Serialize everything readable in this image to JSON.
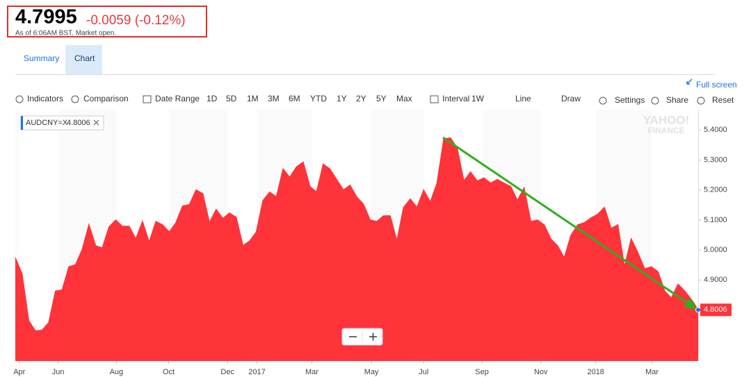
{
  "header": {
    "price": "4.7995",
    "change": "-0.0059 (-0.12%)",
    "timestamp": "As of 6:06AM BST. Market open."
  },
  "tabs": [
    "Summary",
    "Chart"
  ],
  "toolbar": {
    "left": [
      "Indicators",
      "Comparison",
      "Date Range",
      "1D",
      "5D",
      "1M",
      "3M",
      "6M",
      "YTD",
      "1Y",
      "2Y",
      "5Y",
      "Max",
      "Interval",
      "1W",
      "Line",
      "Draw"
    ],
    "right": [
      "Settings",
      "Share",
      "Reset"
    ],
    "full_screen": "Full screen"
  },
  "chart_data": {
    "type": "area",
    "symbol": "AUDCNY=X",
    "color": "#ff333a",
    "watermark": [
      "YAHOO!",
      "FINANCE"
    ],
    "values": [
      4.974,
      4.921,
      4.765,
      4.73,
      4.733,
      4.758,
      4.863,
      4.867,
      4.944,
      4.951,
      5.002,
      5.084,
      5.014,
      5.007,
      5.077,
      5.1,
      5.079,
      5.079,
      5.037,
      5.095,
      5.026,
      5.095,
      5.084,
      5.06,
      5.091,
      5.147,
      5.151,
      5.2,
      5.188,
      5.091,
      5.135,
      5.105,
      5.123,
      5.109,
      5.014,
      5.03,
      5.06,
      5.165,
      5.193,
      5.177,
      5.27,
      5.242,
      5.277,
      5.293,
      5.212,
      5.193,
      5.286,
      5.27,
      5.235,
      5.2,
      5.216,
      5.177,
      5.153,
      5.1,
      5.095,
      5.114,
      5.114,
      5.03,
      5.142,
      5.17,
      5.142,
      5.2,
      5.16,
      5.223,
      5.37,
      5.374,
      5.34,
      5.23,
      5.26,
      5.23,
      5.24,
      5.223,
      5.235,
      5.223,
      5.212,
      5.165,
      5.207,
      5.095,
      5.1,
      5.084,
      5.037,
      5.014,
      4.974,
      5.049,
      5.084,
      5.091,
      5.107,
      5.119,
      5.142,
      5.072,
      5.084,
      4.944,
      5.037,
      4.991,
      4.937,
      4.944,
      4.928,
      4.863,
      4.84,
      4.886,
      4.863,
      4.835,
      4.8006
    ],
    "xlim": [
      0,
      102
    ],
    "xticks": [
      {
        "value": 0.6,
        "label": "Apr"
      },
      {
        "value": 6.4,
        "label": "Jun"
      },
      {
        "value": 15.1,
        "label": "Aug"
      },
      {
        "value": 22.9,
        "label": "Oct"
      },
      {
        "value": 31.7,
        "label": "Dec"
      },
      {
        "value": 36.1,
        "label": "2017"
      },
      {
        "value": 44.3,
        "label": "Mar"
      },
      {
        "value": 53.2,
        "label": "May"
      },
      {
        "value": 61,
        "label": "Jul"
      },
      {
        "value": 69.7,
        "label": "Sep"
      },
      {
        "value": 78.5,
        "label": "Nov"
      },
      {
        "value": 86.7,
        "label": "2018"
      },
      {
        "value": 95.1,
        "label": "Mar"
      }
    ],
    "ylim": [
      4.63,
      5.44
    ],
    "yticks": [
      {
        "value": 4.9,
        "label": "4.9000"
      },
      {
        "value": 5.0,
        "label": "5.0000"
      },
      {
        "value": 5.1,
        "label": "5.1000"
      },
      {
        "value": 5.2,
        "label": "5.2000"
      },
      {
        "value": 5.3,
        "label": "5.3000"
      },
      {
        "value": 5.4,
        "label": "5.4000"
      }
    ]
  }
}
